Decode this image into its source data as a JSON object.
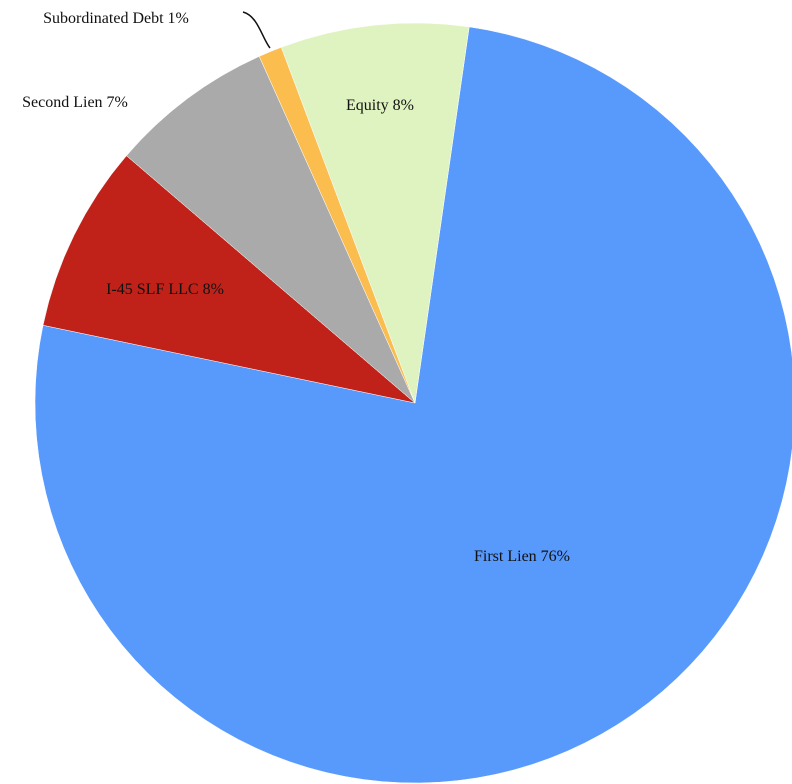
{
  "chart_data": {
    "type": "pie",
    "categories": [
      "First Lien",
      "I-45 SLF LLC",
      "Second Lien",
      "Subordinated Debt",
      "Equity"
    ],
    "values": [
      76,
      8,
      7,
      1,
      8
    ],
    "value_labels": [
      "76%",
      "8%",
      "7%",
      "1%",
      "8%"
    ],
    "colors": [
      "#5899fc",
      "#c0221a",
      "#aaaaaa",
      "#fbbd4e",
      "#dff3c0"
    ]
  }
}
